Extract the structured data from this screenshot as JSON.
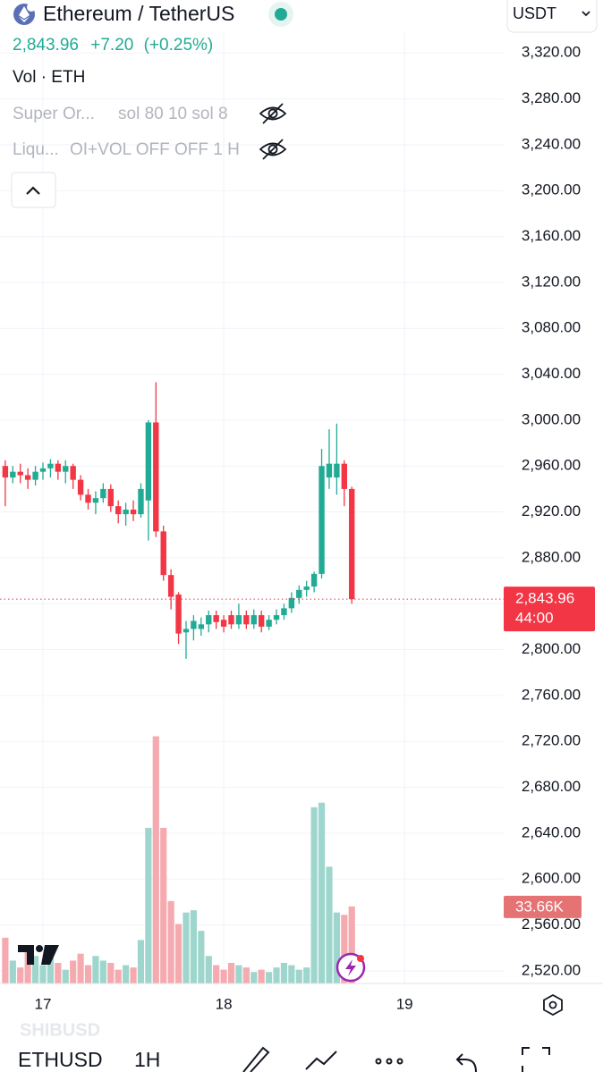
{
  "header": {
    "symbol_title": "Ethereum / TetherUS",
    "price": "2,843.96",
    "change": "+7.20",
    "change_percent": "(+0.25%)",
    "currency": "USDT"
  },
  "indicators": [
    {
      "name": "Vol · ETH"
    },
    {
      "name": "Super Or...",
      "params": "sol 80 10 sol 8"
    },
    {
      "name": "Liqu...",
      "params": "OI+VOL OFF OFF 1 H"
    }
  ],
  "chart_data": {
    "type": "candlestick",
    "categories": [
      null,
      null,
      null,
      null,
      null,
      "17",
      null,
      null,
      null,
      null,
      null,
      null,
      null,
      null,
      null,
      null,
      null,
      null,
      null,
      null,
      null,
      null,
      null,
      null,
      null,
      null,
      null,
      null,
      null,
      "18",
      null,
      null,
      null,
      null,
      null,
      null,
      null,
      null,
      null,
      null,
      null,
      null,
      null,
      null,
      null,
      null,
      null,
      null,
      null,
      null,
      null,
      null,
      null,
      "19"
    ],
    "open": [
      2960,
      2950,
      2955,
      2952,
      2948,
      2955,
      2958,
      2962,
      2955,
      2960,
      2948,
      2935,
      2928,
      2932,
      2940,
      2925,
      2918,
      2922,
      2918,
      2930,
      2998,
      2903,
      2865,
      2848,
      2815,
      2818,
      2818,
      2822,
      2830,
      2826,
      2830,
      2822,
      2830,
      2822,
      2830,
      2820,
      2826,
      2830,
      2836,
      2845,
      2852,
      2855,
      2866,
      2950,
      2950,
      2962,
      2940,
      null,
      null,
      null,
      null,
      null,
      null,
      null
    ],
    "high": [
      2965,
      2960,
      2962,
      2958,
      2960,
      2963,
      2966,
      2965,
      2965,
      2962,
      2952,
      2940,
      2938,
      2945,
      2944,
      2930,
      2928,
      2930,
      2945,
      3000,
      3033,
      2908,
      2870,
      2850,
      2825,
      2830,
      2828,
      2834,
      2834,
      2830,
      2834,
      2840,
      2834,
      2835,
      2834,
      2830,
      2835,
      2840,
      2850,
      2856,
      2860,
      2868,
      2975,
      2992,
      2997,
      2965,
      2942,
      null,
      null,
      null,
      null,
      null,
      null,
      null
    ],
    "low": [
      2925,
      2945,
      2945,
      2940,
      2943,
      2948,
      2950,
      2948,
      2945,
      2940,
      2930,
      2922,
      2918,
      2928,
      2920,
      2910,
      2908,
      2912,
      2915,
      2895,
      2898,
      2860,
      2835,
      2805,
      2792,
      2808,
      2812,
      2815,
      2818,
      2815,
      2818,
      2818,
      2818,
      2818,
      2815,
      2817,
      2822,
      2826,
      2832,
      2840,
      2846,
      2850,
      2862,
      2940,
      2935,
      2925,
      2840,
      null,
      null,
      null,
      null,
      null,
      null,
      null
    ],
    "close": [
      2950,
      2955,
      2952,
      2948,
      2955,
      2958,
      2962,
      2955,
      2960,
      2948,
      2935,
      2928,
      2932,
      2940,
      2925,
      2918,
      2922,
      2918,
      2940,
      2998,
      2903,
      2865,
      2846,
      2814,
      2818,
      2825,
      2822,
      2830,
      2824,
      2820,
      2822,
      2830,
      2822,
      2830,
      2820,
      2826,
      2830,
      2836,
      2845,
      2852,
      2855,
      2866,
      2960,
      2962,
      2962,
      2940,
      2843.96,
      null,
      null,
      null,
      null,
      null,
      null,
      null
    ],
    "volume": [
      20000,
      10000,
      7000,
      16000,
      12000,
      8000,
      14000,
      9000,
      6000,
      10000,
      13000,
      8000,
      12000,
      10000,
      9000,
      6000,
      8000,
      7000,
      19000,
      68000,
      108000,
      68000,
      36000,
      26000,
      31000,
      32000,
      23000,
      12000,
      8000,
      6000,
      9000,
      8000,
      7000,
      5000,
      6000,
      5000,
      7000,
      9000,
      8000,
      6000,
      7000,
      77000,
      79000,
      51000,
      31000,
      30000,
      33660,
      null,
      null,
      null,
      null,
      null,
      null,
      null
    ],
    "last_price": {
      "value": 2843.96,
      "label": "2,843.96"
    },
    "countdown": "44:00",
    "last_volume": {
      "value": 33660,
      "label": "33.66K"
    },
    "up_color": "#22ab94",
    "down_color": "#f23645",
    "volume_up_color": "#9ed6cd",
    "volume_down_color": "#f5aab0",
    "ylim": [
      2509,
      3335
    ],
    "yticks": [
      {
        "value": 3320,
        "label": "3,320.00"
      },
      {
        "value": 3280,
        "label": "3,280.00"
      },
      {
        "value": 3240,
        "label": "3,240.00"
      },
      {
        "value": 3200,
        "label": "3,200.00"
      },
      {
        "value": 3160,
        "label": "3,160.00"
      },
      {
        "value": 3120,
        "label": "3,120.00"
      },
      {
        "value": 3080,
        "label": "3,080.00"
      },
      {
        "value": 3040,
        "label": "3,040.00"
      },
      {
        "value": 3000,
        "label": "3,000.00"
      },
      {
        "value": 2960,
        "label": "2,960.00"
      },
      {
        "value": 2920,
        "label": "2,920.00"
      },
      {
        "value": 2880,
        "label": "2,880.00"
      },
      {
        "value": 2840,
        "label": "2,840.00"
      },
      {
        "value": 2800,
        "label": "2,800.00"
      },
      {
        "value": 2760,
        "label": "2,760.00"
      },
      {
        "value": 2720,
        "label": "2,720.00"
      },
      {
        "value": 2680,
        "label": "2,680.00"
      },
      {
        "value": 2640,
        "label": "2,640.00"
      },
      {
        "value": 2600,
        "label": "2,600.00"
      },
      {
        "value": 2560,
        "label": "2,560.00"
      },
      {
        "value": 2520,
        "label": "2,520.00"
      }
    ],
    "grid": true
  },
  "footer": {
    "watermark_symbol": "SHIBUSD",
    "symbol": "ETHUSD",
    "interval": "1H"
  }
}
